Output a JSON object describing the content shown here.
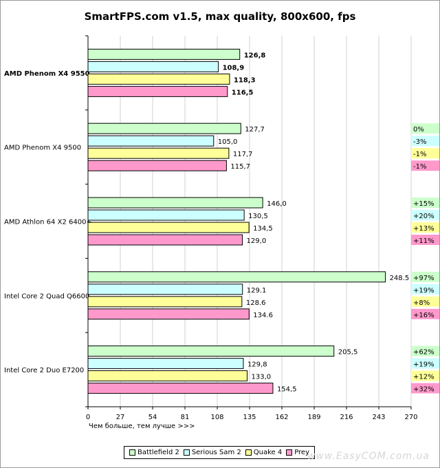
{
  "chart_data": {
    "type": "bar",
    "orientation": "horizontal",
    "title": "SmartFPS.com v1.5, max quality, 800x600, fps",
    "xlabel": "Чем больше, тем лучше >>>",
    "ylabel": "",
    "xlim": [
      0,
      270
    ],
    "xticks": [
      0,
      27,
      54,
      81,
      108,
      135,
      162,
      189,
      216,
      243,
      270
    ],
    "grid": true,
    "legend_position": "bottom",
    "categories": [
      "AMD Phenom X4 9550",
      "AMD Phenom X4 9500",
      "AMD Athlon 64 X2 6400+",
      "Intel Core 2 Quad Q6600",
      "Intel Core 2 Duo E7200"
    ],
    "highlighted_category": "AMD Phenom X4 9550",
    "series": [
      {
        "name": "Battlefield 2",
        "color": "#ccffcc",
        "values": [
          126.8,
          127.7,
          146.0,
          248.5,
          205.5
        ],
        "labels": [
          "126,8",
          "127,7",
          "146,0",
          "248.5",
          "205,5"
        ],
        "deltas": [
          "",
          "0%",
          "+15%",
          "+97%",
          "+62%"
        ]
      },
      {
        "name": "Serious Sam 2",
        "color": "#ccffff",
        "values": [
          108.9,
          105.0,
          130.5,
          129.1,
          129.8
        ],
        "labels": [
          "108,9",
          "105,0",
          "130,5",
          "129.1",
          "129,8"
        ],
        "deltas": [
          "",
          "-3%",
          "+20%",
          "+19%",
          "+19%"
        ]
      },
      {
        "name": "Quake 4",
        "color": "#ffff99",
        "values": [
          118.3,
          117.7,
          134.5,
          128.6,
          133.0
        ],
        "labels": [
          "118,3",
          "117,7",
          "134,5",
          "128.6",
          "133,0"
        ],
        "deltas": [
          "",
          "-1%",
          "+13%",
          "+8%",
          "+12%"
        ]
      },
      {
        "name": "Prey",
        "color": "#ff99cc",
        "values": [
          116.5,
          115.7,
          129.0,
          134.6,
          154.5
        ],
        "labels": [
          "116,5",
          "115,7",
          "129,0",
          "134.6",
          "154,5"
        ],
        "deltas": [
          "",
          "-1%",
          "+11%",
          "+16%",
          "+32%"
        ]
      }
    ]
  },
  "watermark": "www.EasyCOM.com.ua"
}
